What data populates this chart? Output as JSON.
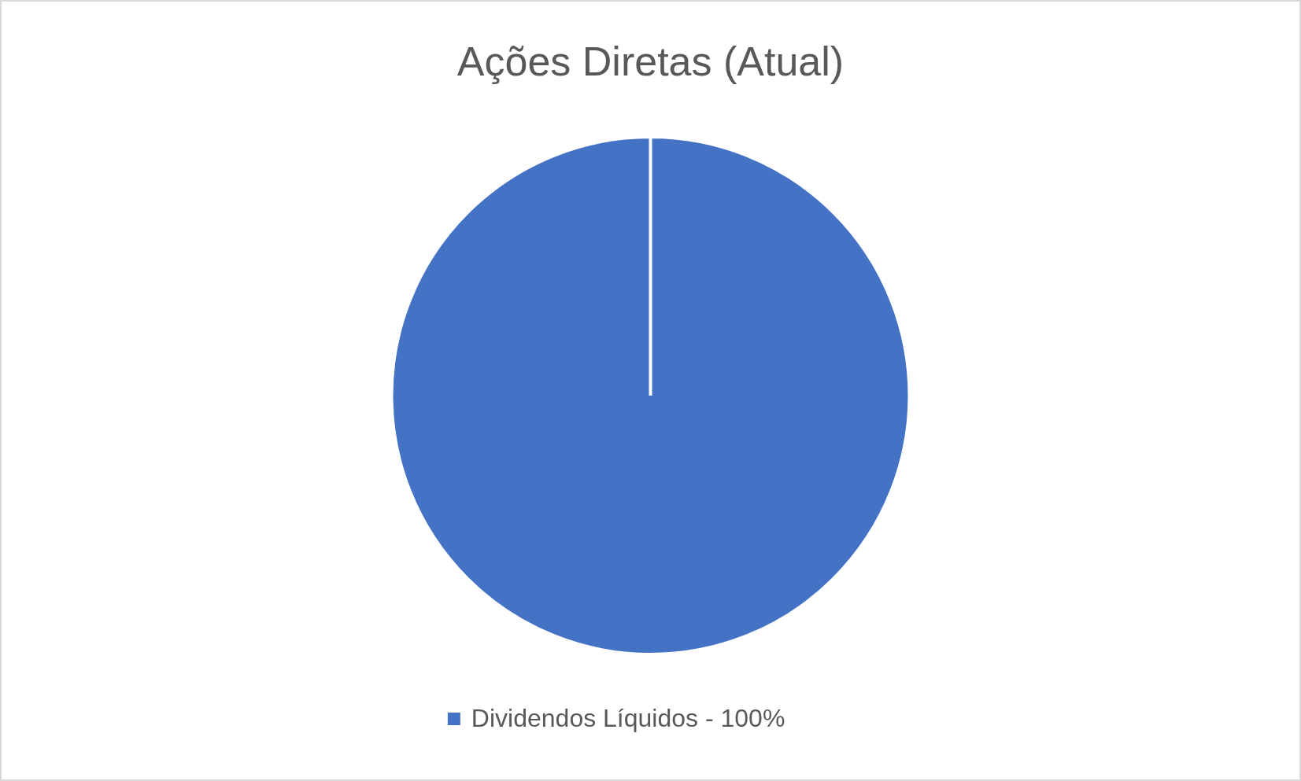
{
  "chart_data": {
    "type": "pie",
    "title": "Ações Diretas (Atual)",
    "categories": [
      "Dividendos Líquidos  - 100%"
    ],
    "values": [
      100
    ],
    "colors": [
      "#4472c4"
    ],
    "legend": "bottom"
  }
}
